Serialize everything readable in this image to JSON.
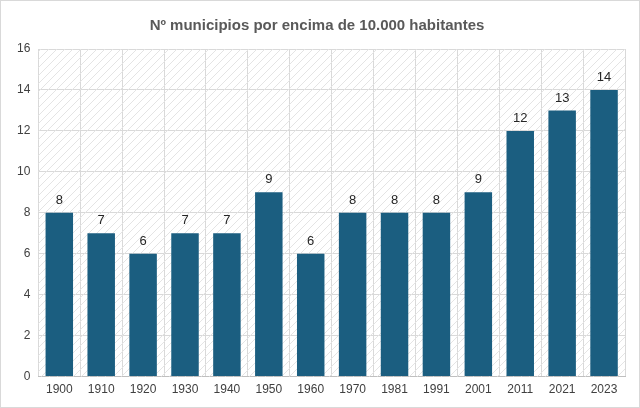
{
  "chart_data": {
    "type": "bar",
    "title": "Nº municipios por encima de 10.000 habitantes",
    "categories": [
      "1900",
      "1910",
      "1920",
      "1930",
      "1940",
      "1950",
      "1960",
      "1970",
      "1981",
      "1991",
      "2001",
      "2011",
      "2021",
      "2023"
    ],
    "values": [
      8,
      7,
      6,
      7,
      7,
      9,
      6,
      8,
      8,
      8,
      9,
      12,
      13,
      14
    ],
    "color": "#1b5e80",
    "ylim": [
      0,
      16
    ],
    "yticks": [
      0,
      2,
      4,
      6,
      8,
      10,
      12,
      14,
      16
    ],
    "grid": true,
    "data_labels": true
  }
}
